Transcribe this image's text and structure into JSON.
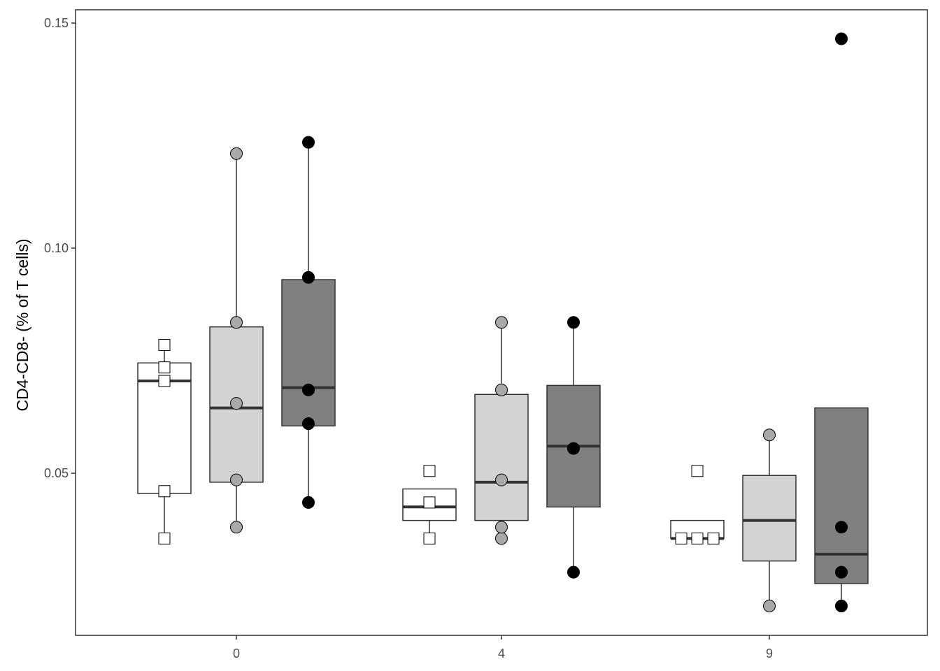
{
  "chart_data": {
    "type": "boxplot",
    "xlabel": "",
    "ylabel": "CD4-CD8- (% of T cells)",
    "ylim": [
      0.0135,
      0.1525
    ],
    "y_ticks": [
      0.05,
      0.1,
      0.15
    ],
    "y_tick_labels": [
      "0.05",
      "0.10",
      "0.15"
    ],
    "categories": [
      "0",
      "4",
      "9"
    ],
    "grid": false,
    "legend": "none",
    "series": [
      {
        "fill": "#ffffff",
        "marker": "square",
        "marker_fill": "#ffffff",
        "boxes": [
          {
            "category": "0",
            "lower_whisker": 0.0355,
            "q1": 0.0455,
            "median": 0.0705,
            "q3": 0.0745,
            "upper_whisker": 0.079
          },
          {
            "category": "4",
            "lower_whisker": 0.0355,
            "q1": 0.0395,
            "median": 0.0425,
            "q3": 0.0465,
            "upper_whisker": 0.0465
          },
          {
            "category": "9",
            "lower_whisker": 0.0355,
            "q1": 0.0355,
            "median": 0.0355,
            "q3": 0.0395,
            "upper_whisker": 0.0395
          }
        ],
        "points": [
          {
            "category": "0",
            "values": [
              0.0355,
              0.046,
              0.0705,
              0.0735,
              0.0785
            ]
          },
          {
            "category": "4",
            "values": [
              0.0355,
              0.0435,
              0.0505
            ]
          },
          {
            "category": "9",
            "values": [
              0.0355,
              0.0355,
              0.0355,
              0.0505
            ]
          }
        ]
      },
      {
        "fill": "#d3d3d3",
        "marker": "circle",
        "marker_fill": "#a9a9a9",
        "boxes": [
          {
            "category": "0",
            "lower_whisker": 0.038,
            "q1": 0.048,
            "median": 0.0645,
            "q3": 0.0825,
            "upper_whisker": 0.121
          },
          {
            "category": "4",
            "lower_whisker": 0.0355,
            "q1": 0.0395,
            "median": 0.048,
            "q3": 0.0675,
            "upper_whisker": 0.0835
          },
          {
            "category": "9",
            "lower_whisker": 0.0205,
            "q1": 0.0305,
            "median": 0.0395,
            "q3": 0.0495,
            "upper_whisker": 0.0585
          }
        ],
        "points": [
          {
            "category": "0",
            "values": [
              0.038,
              0.0485,
              0.0655,
              0.0835,
              0.121
            ]
          },
          {
            "category": "4",
            "values": [
              0.0355,
              0.038,
              0.0485,
              0.0685,
              0.0835
            ]
          },
          {
            "category": "9",
            "values": [
              0.0205,
              0.0585
            ]
          }
        ]
      },
      {
        "fill": "#808080",
        "marker": "circle",
        "marker_fill": "#000000",
        "boxes": [
          {
            "category": "0",
            "lower_whisker": 0.0435,
            "q1": 0.0605,
            "median": 0.069,
            "q3": 0.093,
            "upper_whisker": 0.1235
          },
          {
            "category": "4",
            "lower_whisker": 0.028,
            "q1": 0.0425,
            "median": 0.056,
            "q3": 0.0695,
            "upper_whisker": 0.0835
          },
          {
            "category": "9",
            "lower_whisker": 0.0205,
            "q1": 0.0255,
            "median": 0.032,
            "q3": 0.0645,
            "upper_whisker": 0.0645
          }
        ],
        "points": [
          {
            "category": "0",
            "values": [
              0.0435,
              0.061,
              0.0685,
              0.0935,
              0.1235
            ]
          },
          {
            "category": "4",
            "values": [
              0.028,
              0.0555,
              0.0835
            ]
          },
          {
            "category": "9",
            "values": [
              0.0205,
              0.028,
              0.038,
              0.1465
            ]
          }
        ]
      }
    ]
  }
}
